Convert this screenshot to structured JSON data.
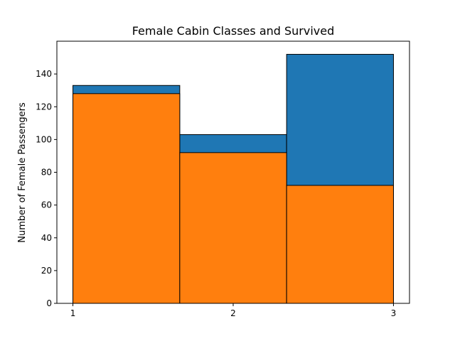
{
  "chart_data": {
    "type": "bar",
    "title": "Female Cabin Classes and Survived",
    "xlabel": "",
    "ylabel": "Number of Female Passengers",
    "xlim": [
      0.9,
      3.1
    ],
    "ylim": [
      0,
      160
    ],
    "x_ticks": [
      "1",
      "2",
      "3"
    ],
    "y_ticks": [
      "0",
      "20",
      "40",
      "60",
      "80",
      "100",
      "120",
      "140"
    ],
    "bins": [
      {
        "x0": 1.0,
        "x1": 1.6667
      },
      {
        "x0": 1.6667,
        "x1": 2.3333
      },
      {
        "x0": 2.3333,
        "x1": 3.0
      }
    ],
    "series": [
      {
        "values": [
          133,
          103,
          152
        ],
        "color": "#1f77b4"
      },
      {
        "values": [
          128,
          92,
          72
        ],
        "color": "#ff7f0e"
      }
    ],
    "grid": false
  }
}
